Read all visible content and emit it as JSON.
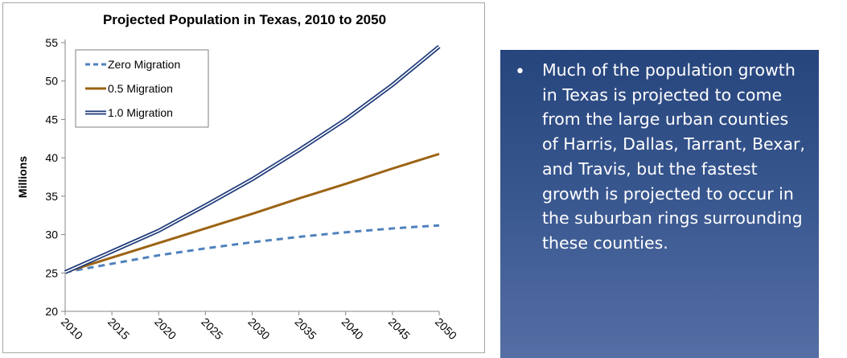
{
  "chart_data": {
    "type": "line",
    "title": "Projected Population in Texas, 2010 to 2050",
    "xlabel": "",
    "ylabel": "Millions",
    "x": [
      2010,
      2015,
      2020,
      2025,
      2030,
      2035,
      2040,
      2045,
      2050
    ],
    "xtick_labels": [
      "2010",
      "2015",
      "2020",
      "2025",
      "2030",
      "2035",
      "2040",
      "2045",
      "2050"
    ],
    "ylim": [
      20,
      55
    ],
    "yticks": [
      20,
      25,
      30,
      35,
      40,
      45,
      50,
      55
    ],
    "grid": false,
    "legend_position": "top-left",
    "series": [
      {
        "name": "Zero Migration",
        "style": "dashed",
        "color": "#4f81bd",
        "values": [
          25.1,
          26.2,
          27.3,
          28.2,
          29.0,
          29.7,
          30.3,
          30.8,
          31.2
        ]
      },
      {
        "name": "0.5 Migration",
        "style": "solid",
        "color": "#9c6314",
        "values": [
          25.1,
          27.0,
          28.9,
          30.8,
          32.7,
          34.7,
          36.6,
          38.6,
          40.5
        ]
      },
      {
        "name": "1.0 Migration",
        "style": "double",
        "color": "#1f3a7a",
        "values": [
          25.1,
          27.8,
          30.5,
          33.8,
          37.2,
          41.0,
          45.0,
          49.5,
          54.5
        ]
      }
    ]
  },
  "panel": {
    "background_top": "#27457d",
    "background_bottom": "#556ea5",
    "bullet": "•",
    "text": "Much of the population growth in Texas is projected to come from the large urban counties of Harris, Dallas, Tarrant, Bexar, and Travis, but the fastest growth is projected to occur in the suburban rings surrounding these counties."
  }
}
